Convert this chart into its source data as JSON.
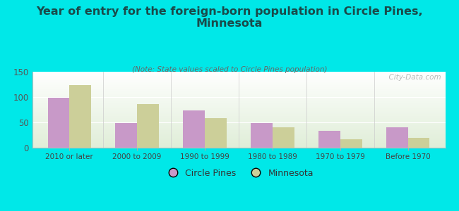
{
  "title": "Year of entry for the foreign-born population in Circle Pines,\nMinnesota",
  "subtitle": "(Note: State values scaled to Circle Pines population)",
  "categories": [
    "2010 or later",
    "2000 to 2009",
    "1990 to 1999",
    "1980 to 1989",
    "1970 to 1979",
    "Before 1970"
  ],
  "circle_pines": [
    99,
    49,
    73,
    49,
    33,
    40
  ],
  "minnesota": [
    124,
    86,
    58,
    40,
    17,
    19
  ],
  "circle_pines_color": "#c899c8",
  "minnesota_color": "#cccf99",
  "background_color": "#00e8e8",
  "ylim": [
    0,
    150
  ],
  "yticks": [
    0,
    50,
    100,
    150
  ],
  "watermark": "  City-Data.com",
  "legend_labels": [
    "Circle Pines",
    "Minnesota"
  ],
  "title_fontsize": 11.5,
  "subtitle_fontsize": 7.5,
  "bar_width": 0.32
}
